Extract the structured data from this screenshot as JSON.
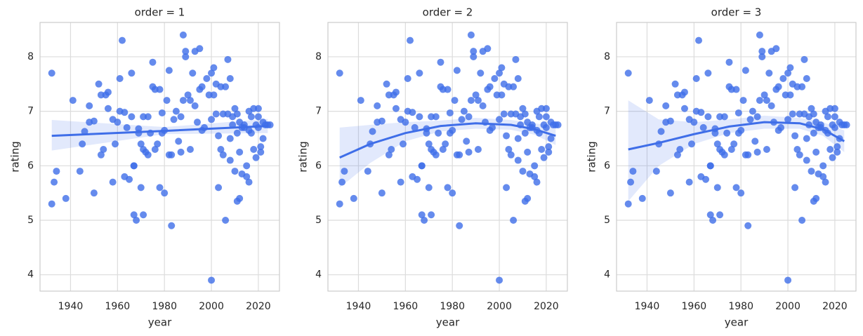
{
  "chart_data": [
    {
      "type": "scatter",
      "title": "order = 1",
      "xlabel": "year",
      "ylabel": "rating",
      "color": "#3f6ee8",
      "xlim": [
        1927,
        2029
      ],
      "ylim": [
        3.7,
        8.63
      ],
      "xticks": [
        1940,
        1960,
        1980,
        2000,
        2020
      ],
      "yticks": [
        4,
        5,
        6,
        7,
        8
      ],
      "grid": true,
      "x": [
        1932,
        1932,
        1933,
        1934,
        1938,
        1941,
        1944,
        1945,
        1946,
        1948,
        1948,
        1950,
        1950,
        1952,
        1953,
        1953,
        1954,
        1955,
        1956,
        1956,
        1958,
        1958,
        1959,
        1960,
        1961,
        1961,
        1962,
        1963,
        1963,
        1964,
        1965,
        1966,
        1966,
        1967,
        1967,
        1967,
        1968,
        1969,
        1969,
        1970,
        1970,
        1971,
        1971,
        1971,
        1972,
        1973,
        1973,
        1974,
        1975,
        1975,
        1976,
        1976,
        1977,
        1978,
        1978,
        1979,
        1979,
        1980,
        1980,
        1981,
        1982,
        1982,
        1983,
        1983,
        1984,
        1985,
        1986,
        1987,
        1987,
        1988,
        1988,
        1989,
        1989,
        1990,
        1991,
        1991,
        1992,
        1993,
        1993,
        1994,
        1995,
        1995,
        1996,
        1996,
        1997,
        1998,
        1999,
        2000,
        2000,
        2000,
        2001,
        2001,
        2002,
        2002,
        2003,
        2003,
        2004,
        2004,
        2005,
        2005,
        2006,
        2006,
        2007,
        2007,
        2008,
        2008,
        2008,
        2009,
        2009,
        2010,
        2010,
        2011,
        2011,
        2011,
        2012,
        2012,
        2012,
        2013,
        2013,
        2014,
        2014,
        2015,
        2015,
        2016,
        2016,
        2016,
        2017,
        2017,
        2018,
        2018,
        2019,
        2019,
        2020,
        2020,
        2020,
        2021,
        2021,
        2022,
        2022,
        2023,
        2024,
        2025
      ],
      "values": [
        7.7,
        5.3,
        5.7,
        5.9,
        5.4,
        7.2,
        5.9,
        6.4,
        6.63,
        7.1,
        6.8,
        6.82,
        5.5,
        7.5,
        6.2,
        7.3,
        6.3,
        7.3,
        7.35,
        7.05,
        6.85,
        5.7,
        6.4,
        6.8,
        7.0,
        7.6,
        8.3,
        6.98,
        5.8,
        6.7,
        5.75,
        7.7,
        6.9,
        6.0,
        6.0,
        5.1,
        5.0,
        6.6,
        6.68,
        5.6,
        6.4,
        6.9,
        6.3,
        5.1,
        6.25,
        6.2,
        6.9,
        6.6,
        7.9,
        7.45,
        6.3,
        7.4,
        6.4,
        7.4,
        5.6,
        6.6,
        6.97,
        6.65,
        5.5,
        7.2,
        7.75,
        6.2,
        6.2,
        4.9,
        6.85,
        7.0,
        6.45,
        6.25,
        6.9,
        8.4,
        7.2,
        8.1,
        8.0,
        7.3,
        6.3,
        7.2,
        7.7,
        7.1,
        8.1,
        6.8,
        8.15,
        7.4,
        6.65,
        7.45,
        6.7,
        7.6,
        7.3,
        6.85,
        7.7,
        3.9,
        7.8,
        7.3,
        7.5,
        6.95,
        5.6,
        6.55,
        7.45,
        6.3,
        6.95,
        6.2,
        5.0,
        7.45,
        7.95,
        6.95,
        6.5,
        7.6,
        6.1,
        6.75,
        6.9,
        7.05,
        5.9,
        6.6,
        5.35,
        6.95,
        6.25,
        5.4,
        6.8,
        6.7,
        5.85,
        6.7,
        6.75,
        5.8,
        6.0,
        7.0,
        6.65,
        5.7,
        6.6,
        6.9,
        7.05,
        6.3,
        6.75,
        6.15,
        7.05,
        6.7,
        6.9,
        6.35,
        6.25,
        6.5,
        6.8,
        6.75,
        6.75,
        6.75
      ],
      "fit": {
        "x": [
          1932,
          1980,
          2024
        ],
        "values": [
          6.55,
          6.64,
          6.73
        ],
        "lower": [
          6.28,
          6.58,
          6.6
        ],
        "upper": [
          6.84,
          6.71,
          6.86
        ]
      }
    },
    {
      "type": "scatter",
      "title": "order = 2",
      "xlabel": "year",
      "ylabel": "rating",
      "color": "#3f6ee8",
      "xlim": [
        1927,
        2029
      ],
      "ylim": [
        3.7,
        8.63
      ],
      "xticks": [
        1940,
        1960,
        1980,
        2000,
        2020
      ],
      "yticks": [
        4,
        5,
        6,
        7,
        8
      ],
      "grid": true,
      "x": [
        1932,
        1932,
        1933,
        1934,
        1938,
        1941,
        1944,
        1945,
        1946,
        1948,
        1948,
        1950,
        1950,
        1952,
        1953,
        1953,
        1954,
        1955,
        1956,
        1956,
        1958,
        1958,
        1959,
        1960,
        1961,
        1961,
        1962,
        1963,
        1963,
        1964,
        1965,
        1966,
        1966,
        1967,
        1967,
        1967,
        1968,
        1969,
        1969,
        1970,
        1970,
        1971,
        1971,
        1971,
        1972,
        1973,
        1973,
        1974,
        1975,
        1975,
        1976,
        1976,
        1977,
        1978,
        1978,
        1979,
        1979,
        1980,
        1980,
        1981,
        1982,
        1982,
        1983,
        1983,
        1984,
        1985,
        1986,
        1987,
        1987,
        1988,
        1988,
        1989,
        1989,
        1990,
        1991,
        1991,
        1992,
        1993,
        1993,
        1994,
        1995,
        1995,
        1996,
        1996,
        1997,
        1998,
        1999,
        2000,
        2000,
        2000,
        2001,
        2001,
        2002,
        2002,
        2003,
        2003,
        2004,
        2004,
        2005,
        2005,
        2006,
        2006,
        2007,
        2007,
        2008,
        2008,
        2008,
        2009,
        2009,
        2010,
        2010,
        2011,
        2011,
        2011,
        2012,
        2012,
        2012,
        2013,
        2013,
        2014,
        2014,
        2015,
        2015,
        2016,
        2016,
        2016,
        2017,
        2017,
        2018,
        2018,
        2019,
        2019,
        2020,
        2020,
        2020,
        2021,
        2021,
        2022,
        2022,
        2023,
        2024,
        2025
      ],
      "values": [
        7.7,
        5.3,
        5.7,
        5.9,
        5.4,
        7.2,
        5.9,
        6.4,
        6.63,
        7.1,
        6.8,
        6.82,
        5.5,
        7.5,
        6.2,
        7.3,
        6.3,
        7.3,
        7.35,
        7.05,
        6.85,
        5.7,
        6.4,
        6.8,
        7.0,
        7.6,
        8.3,
        6.98,
        5.8,
        6.7,
        5.75,
        7.7,
        6.9,
        6.0,
        6.0,
        5.1,
        5.0,
        6.6,
        6.68,
        5.6,
        6.4,
        6.9,
        6.3,
        5.1,
        6.25,
        6.2,
        6.9,
        6.6,
        7.9,
        7.45,
        6.3,
        7.4,
        6.4,
        7.4,
        5.6,
        6.6,
        6.97,
        6.65,
        5.5,
        7.2,
        7.75,
        6.2,
        6.2,
        4.9,
        6.85,
        7.0,
        6.45,
        6.25,
        6.9,
        8.4,
        7.2,
        8.1,
        8.0,
        7.3,
        6.3,
        7.2,
        7.7,
        7.1,
        8.1,
        6.8,
        8.15,
        7.4,
        6.65,
        7.45,
        6.7,
        7.6,
        7.3,
        6.85,
        7.7,
        3.9,
        7.8,
        7.3,
        7.5,
        6.95,
        5.6,
        6.55,
        7.45,
        6.3,
        6.95,
        6.2,
        5.0,
        7.45,
        7.95,
        6.95,
        6.5,
        7.6,
        6.1,
        6.75,
        6.9,
        7.05,
        5.9,
        6.6,
        5.35,
        6.95,
        6.25,
        5.4,
        6.8,
        6.7,
        5.85,
        6.7,
        6.75,
        5.8,
        6.0,
        7.0,
        6.65,
        5.7,
        6.6,
        6.9,
        7.05,
        6.3,
        6.75,
        6.15,
        7.05,
        6.7,
        6.9,
        6.35,
        6.25,
        6.5,
        6.8,
        6.75,
        6.75,
        6.75
      ],
      "fit": {
        "x": [
          1932,
          1945,
          1960,
          1975,
          1990,
          2005,
          2015,
          2024
        ],
        "values": [
          6.15,
          6.4,
          6.6,
          6.73,
          6.78,
          6.75,
          6.67,
          6.55
        ],
        "lower": [
          5.6,
          6.05,
          6.45,
          6.63,
          6.68,
          6.66,
          6.57,
          6.38
        ],
        "upper": [
          6.7,
          6.75,
          6.8,
          6.83,
          6.88,
          6.84,
          6.78,
          6.72
        ]
      }
    },
    {
      "type": "scatter",
      "title": "order = 3",
      "xlabel": "year",
      "ylabel": "rating",
      "color": "#3f6ee8",
      "xlim": [
        1927,
        2029
      ],
      "ylim": [
        3.7,
        8.63
      ],
      "xticks": [
        1940,
        1960,
        1980,
        2000,
        2020
      ],
      "yticks": [
        4,
        5,
        6,
        7,
        8
      ],
      "grid": true,
      "x": [
        1932,
        1932,
        1933,
        1934,
        1938,
        1941,
        1944,
        1945,
        1946,
        1948,
        1948,
        1950,
        1950,
        1952,
        1953,
        1953,
        1954,
        1955,
        1956,
        1956,
        1958,
        1958,
        1959,
        1960,
        1961,
        1961,
        1962,
        1963,
        1963,
        1964,
        1965,
        1966,
        1966,
        1967,
        1967,
        1967,
        1968,
        1969,
        1969,
        1970,
        1970,
        1971,
        1971,
        1971,
        1972,
        1973,
        1973,
        1974,
        1975,
        1975,
        1976,
        1976,
        1977,
        1978,
        1978,
        1979,
        1979,
        1980,
        1980,
        1981,
        1982,
        1982,
        1983,
        1983,
        1984,
        1985,
        1986,
        1987,
        1987,
        1988,
        1988,
        1989,
        1989,
        1990,
        1991,
        1991,
        1992,
        1993,
        1993,
        1994,
        1995,
        1995,
        1996,
        1996,
        1997,
        1998,
        1999,
        2000,
        2000,
        2000,
        2001,
        2001,
        2002,
        2002,
        2003,
        2003,
        2004,
        2004,
        2005,
        2005,
        2006,
        2006,
        2007,
        2007,
        2008,
        2008,
        2008,
        2009,
        2009,
        2010,
        2010,
        2011,
        2011,
        2011,
        2012,
        2012,
        2012,
        2013,
        2013,
        2014,
        2014,
        2015,
        2015,
        2016,
        2016,
        2016,
        2017,
        2017,
        2018,
        2018,
        2019,
        2019,
        2020,
        2020,
        2020,
        2021,
        2021,
        2022,
        2022,
        2023,
        2024,
        2025
      ],
      "values": [
        7.7,
        5.3,
        5.7,
        5.9,
        5.4,
        7.2,
        5.9,
        6.4,
        6.63,
        7.1,
        6.8,
        6.82,
        5.5,
        7.5,
        6.2,
        7.3,
        6.3,
        7.3,
        7.35,
        7.05,
        6.85,
        5.7,
        6.4,
        6.8,
        7.0,
        7.6,
        8.3,
        6.98,
        5.8,
        6.7,
        5.75,
        7.7,
        6.9,
        6.0,
        6.0,
        5.1,
        5.0,
        6.6,
        6.68,
        5.6,
        6.4,
        6.9,
        6.3,
        5.1,
        6.25,
        6.2,
        6.9,
        6.6,
        7.9,
        7.45,
        6.3,
        7.4,
        6.4,
        7.4,
        5.6,
        6.6,
        6.97,
        6.65,
        5.5,
        7.2,
        7.75,
        6.2,
        6.2,
        4.9,
        6.85,
        7.0,
        6.45,
        6.25,
        6.9,
        8.4,
        7.2,
        8.1,
        8.0,
        7.3,
        6.3,
        7.2,
        7.7,
        7.1,
        8.1,
        6.8,
        8.15,
        7.4,
        6.65,
        7.45,
        6.7,
        7.6,
        7.3,
        6.85,
        7.7,
        3.9,
        7.8,
        7.3,
        7.5,
        6.95,
        5.6,
        6.55,
        7.45,
        6.3,
        6.95,
        6.2,
        5.0,
        7.45,
        7.95,
        6.95,
        6.5,
        7.6,
        6.1,
        6.75,
        6.9,
        7.05,
        5.9,
        6.6,
        5.35,
        6.95,
        6.25,
        5.4,
        6.8,
        6.7,
        5.85,
        6.7,
        6.75,
        5.8,
        6.0,
        7.0,
        6.65,
        5.7,
        6.6,
        6.9,
        7.05,
        6.3,
        6.75,
        6.15,
        7.05,
        6.7,
        6.9,
        6.35,
        6.25,
        6.5,
        6.8,
        6.75,
        6.75,
        6.75
      ],
      "fit": {
        "x": [
          1932,
          1945,
          1960,
          1975,
          1990,
          2005,
          2015,
          2024
        ],
        "values": [
          6.3,
          6.42,
          6.58,
          6.72,
          6.8,
          6.78,
          6.67,
          6.45
        ],
        "lower": [
          5.35,
          6.0,
          6.4,
          6.6,
          6.68,
          6.68,
          6.55,
          6.25
        ],
        "upper": [
          7.2,
          6.85,
          6.8,
          6.85,
          6.92,
          6.88,
          6.8,
          6.65
        ]
      }
    }
  ]
}
